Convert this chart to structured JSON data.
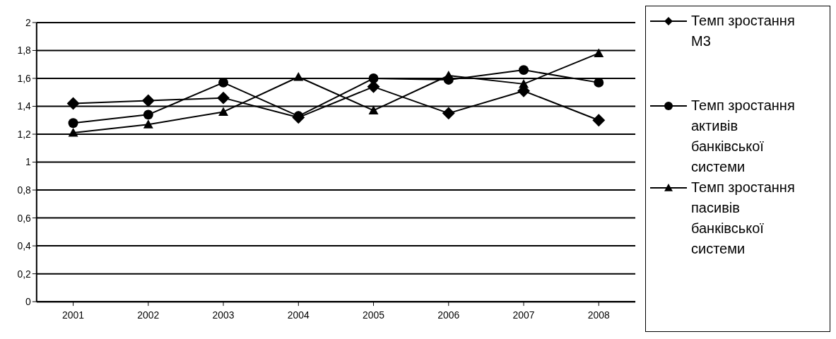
{
  "chart_data": {
    "type": "line",
    "categories": [
      "2001",
      "2002",
      "2003",
      "2004",
      "2005",
      "2006",
      "2007",
      "2008"
    ],
    "series": [
      {
        "name": "Темп зростання М3",
        "color": "#000000",
        "marker": "diamond",
        "values": [
          1.42,
          1.44,
          1.46,
          1.32,
          1.54,
          1.35,
          1.51,
          1.3
        ]
      },
      {
        "name": "Темп зростання активів банківської системи",
        "color": "#000000",
        "marker": "circle",
        "values": [
          1.28,
          1.34,
          1.57,
          1.33,
          1.6,
          1.59,
          1.66,
          1.57
        ]
      },
      {
        "name": "Темп зростання пасивів банківської системи",
        "color": "#000000",
        "marker": "triangle",
        "values": [
          1.21,
          1.27,
          1.36,
          1.61,
          1.37,
          1.62,
          1.56,
          1.78
        ]
      }
    ],
    "ylim": [
      0,
      2
    ],
    "yticks": [
      0,
      {
        "value": 0.2,
        "label": "0,2"
      },
      {
        "value": 0.4,
        "label": "0,4"
      },
      {
        "value": 0.6,
        "label": "0,6"
      },
      {
        "value": 0.8,
        "label": "0,8"
      },
      1,
      {
        "value": 1.2,
        "label": "1,2"
      },
      {
        "value": 1.4,
        "label": "1,4"
      },
      {
        "value": 1.6,
        "label": "1,6"
      },
      {
        "value": 1.8,
        "label": "1,8"
      },
      2
    ],
    "grid": "y",
    "legend": "right",
    "line_style": "solid"
  }
}
